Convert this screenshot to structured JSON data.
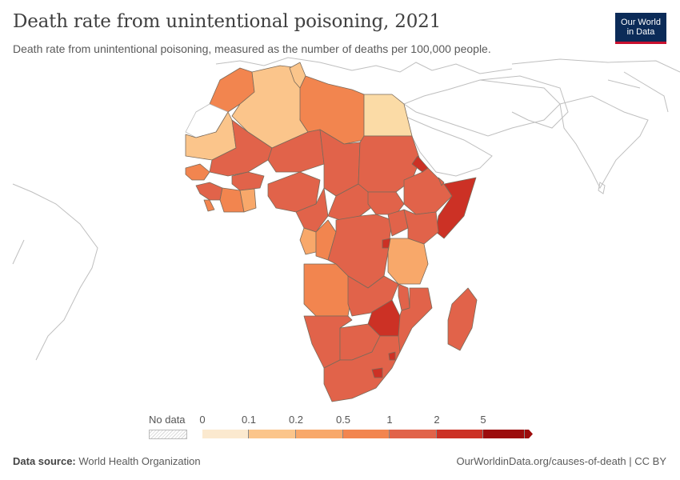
{
  "header": {
    "title": "Death rate from unintentional poisoning, 2021",
    "subtitle": "Death rate from unintentional poisoning, measured as the number of deaths per 100,000 people."
  },
  "logo": {
    "line1": "Our World",
    "line2": "in Data"
  },
  "legend": {
    "no_data_label": "No data",
    "ticks": [
      "0",
      "0.1",
      "0.2",
      "0.5",
      "1",
      "2",
      "5"
    ],
    "colors": [
      "#fbe9cf",
      "#fbc58b",
      "#f8a86a",
      "#f2854f",
      "#e1634a",
      "#cc3125",
      "#9c0c0c"
    ]
  },
  "footer": {
    "source_label": "Data source:",
    "source_value": "World Health Organization",
    "credit": "OurWorldinData.org/causes-of-death | CC BY"
  }
}
